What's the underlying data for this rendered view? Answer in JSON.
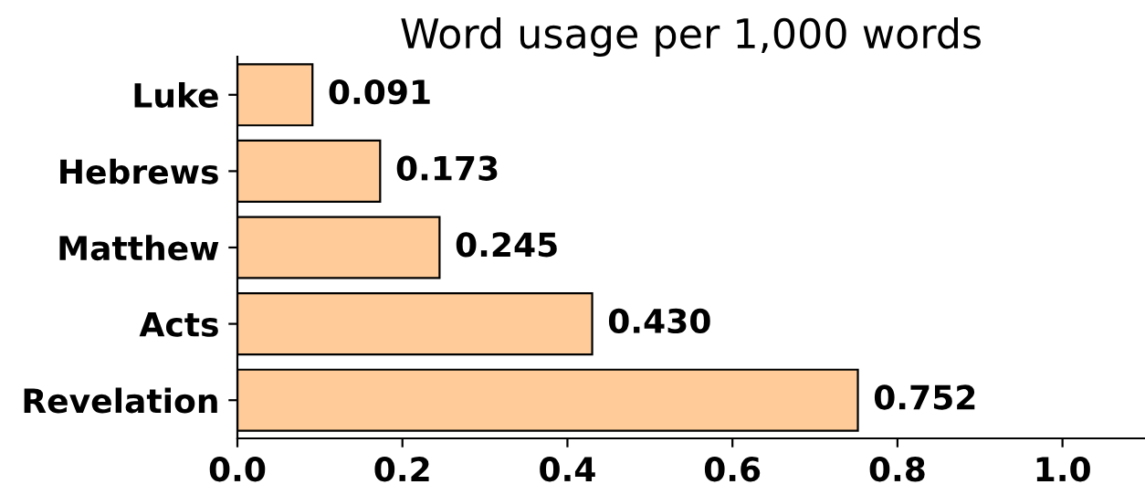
{
  "chart_data": {
    "type": "bar",
    "orientation": "horizontal",
    "title": "Word usage per 1,000 words",
    "categories": [
      "Luke",
      "Hebrews",
      "Matthew",
      "Acts",
      "Revelation"
    ],
    "values": [
      0.091,
      0.173,
      0.245,
      0.43,
      0.752
    ],
    "value_labels": [
      "0.091",
      "0.173",
      "0.245",
      "0.430",
      "0.752"
    ],
    "color": "#ffcc99",
    "xlim": [
      0,
      1.1
    ],
    "xticks": [
      {
        "value": 0,
        "label": "0.0"
      },
      {
        "value": 0.2,
        "label": "0.2"
      },
      {
        "value": 0.4,
        "label": "0.4"
      },
      {
        "value": 0.6,
        "label": "0.6"
      },
      {
        "value": 0.8,
        "label": "0.8"
      },
      {
        "value": 1.0,
        "label": "1.0"
      }
    ],
    "grid": false,
    "legend": false
  }
}
